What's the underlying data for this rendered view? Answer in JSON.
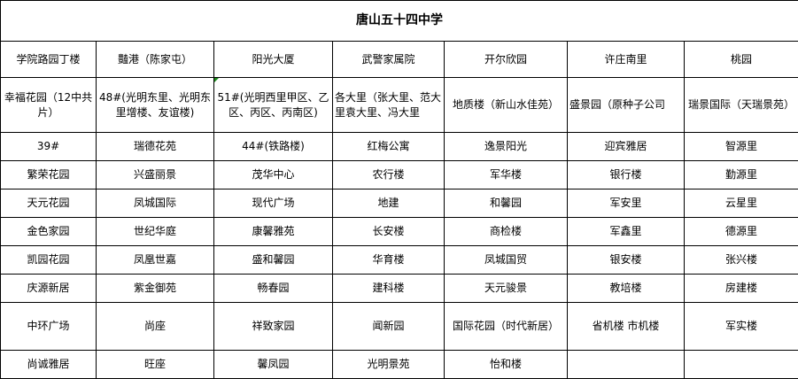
{
  "title": "唐山五十四中学",
  "headers": [
    "学院路园丁楼",
    "豔港（陈家屯）",
    "阳光大厦",
    "武警家属院",
    "开尔欣园",
    "许庄南里",
    "桃园"
  ],
  "rows": [
    [
      "幸福花园（12中共片）",
      "48#(光明东里、光明东里增楼、友谊楼)",
      "51#(光明西里甲区、乙区、丙区、丙南区)",
      "各大里（张大里、范大里袁大里、冯大里",
      "地质楼（新山水佳苑）",
      "盛景园（原种子公司",
      "瑞景国际（天瑞景苑）"
    ],
    [
      "39#",
      "瑞德花苑",
      "44#(铁路楼)",
      "红梅公寓",
      "逸景阳光",
      "迎宾雅居",
      "智源里"
    ],
    [
      "繁荣花园",
      "兴盛丽景",
      "茂华中心",
      "农行楼",
      "军华楼",
      "银行楼",
      "勤源里"
    ],
    [
      "天元花园",
      "凤城国际",
      "现代广场",
      "地建",
      "和馨园",
      "军安里",
      "云星里"
    ],
    [
      "金色家园",
      "世纪华庭",
      "康馨雅苑",
      "长安楼",
      "商检楼",
      "军鑫里",
      "德源里"
    ],
    [
      "凯园花园",
      "凤凰世嘉",
      "盛和馨园",
      "华育楼",
      "凤城国贸",
      "银安楼",
      "张兴楼"
    ],
    [
      "庆源新居",
      "紫金御苑",
      "畅春园",
      "建科楼",
      "天元骏景",
      "教培楼",
      "房建楼"
    ],
    [
      "中环广场",
      "尚座",
      "祥致家园",
      "闻新园",
      "国际花园（时代新居）",
      "省机楼 市机楼",
      "军实楼"
    ],
    [
      "尚诚雅居",
      "旺座",
      "馨凤园",
      "光明景苑",
      "怡和楼",
      "",
      ""
    ]
  ]
}
